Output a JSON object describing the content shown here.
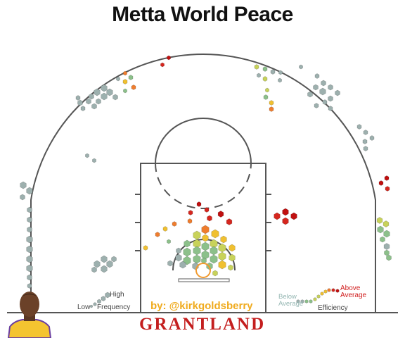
{
  "title": "Metta World Peace",
  "byline": "by: @kirkgoldsberry",
  "brand": "GRANTLAND",
  "legend": {
    "frequency": {
      "high": "High",
      "low": "Low",
      "label": "Frequency"
    },
    "efficiency": {
      "below": "Below Average",
      "above": "Above Average",
      "label": "Efficiency"
    }
  },
  "colors": {
    "court_line": "#555555",
    "hoop": "#f29a2e",
    "brand": "#c41e1e",
    "byline": "#f0ab1e",
    "efficiency_scale": [
      "#9db0ae",
      "#8cc08a",
      "#c8d25a",
      "#f0c030",
      "#ef7d2e",
      "#d5261e",
      "#c01010"
    ]
  },
  "chart_data": {
    "type": "shot chart (hexagonal bins)",
    "title": "Metta World Peace",
    "encoding": {
      "size": "shot frequency (Low to High)",
      "color": "shooting efficiency (Below Average to Above Average)"
    },
    "zones": [
      {
        "zone": "restricted area / paint",
        "frequency": "high",
        "efficiency": "mixed, mostly below to average"
      },
      {
        "zone": "short mid-range above paint",
        "frequency": "low",
        "efficiency": "above average"
      },
      {
        "zone": "right elbow / mid-range",
        "frequency": "low",
        "efficiency": "above average"
      },
      {
        "zone": "left corner three",
        "frequency": "medium",
        "efficiency": "below average"
      },
      {
        "zone": "right corner three",
        "frequency": "medium",
        "efficiency": "average"
      },
      {
        "zone": "left wing three",
        "frequency": "medium",
        "efficiency": "below average"
      },
      {
        "zone": "right wing three",
        "frequency": "medium",
        "efficiency": "below average"
      },
      {
        "zone": "left baseline mid-range",
        "frequency": "low",
        "efficiency": "below average"
      },
      {
        "zone": "right wing far",
        "frequency": "low",
        "efficiency": "above average"
      }
    ]
  }
}
